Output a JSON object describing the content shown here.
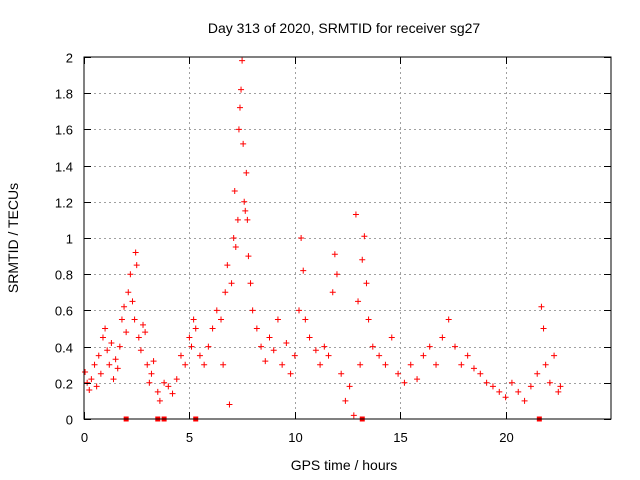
{
  "chart_data": {
    "type": "scatter",
    "title": "Day 313 of 2020, SRMTID for receiver sg27",
    "xlabel": "GPS time / hours",
    "ylabel": "SRMTID / TECUs",
    "xlim": [
      0,
      25
    ],
    "ylim": [
      0,
      2
    ],
    "grid": true,
    "x_ticks": [
      "0",
      "5",
      "10",
      "15",
      "20"
    ],
    "x_tick_values": [
      0,
      5,
      10,
      15,
      20
    ],
    "y_ticks": [
      "0",
      "0.2",
      "0.4",
      "0.6",
      "0.8",
      "1",
      "1.2",
      "1.4",
      "1.6",
      "1.8",
      "2"
    ],
    "y_tick_values": [
      0,
      0.2,
      0.4,
      0.6,
      0.8,
      1.0,
      1.2,
      1.4,
      1.6,
      1.8,
      2.0
    ],
    "marker": "+",
    "series": [
      {
        "name": "SRMTID",
        "color": "#ff0000",
        "points": [
          [
            0.05,
            0.26
          ],
          [
            0.15,
            0.2
          ],
          [
            0.25,
            0.16
          ],
          [
            0.35,
            0.22
          ],
          [
            0.5,
            0.3
          ],
          [
            0.6,
            0.18
          ],
          [
            0.7,
            0.35
          ],
          [
            0.8,
            0.25
          ],
          [
            0.9,
            0.45
          ],
          [
            1.0,
            0.5
          ],
          [
            1.1,
            0.38
          ],
          [
            1.2,
            0.3
          ],
          [
            1.3,
            0.42
          ],
          [
            1.4,
            0.22
          ],
          [
            1.5,
            0.33
          ],
          [
            1.6,
            0.28
          ],
          [
            1.7,
            0.4
          ],
          [
            1.8,
            0.55
          ],
          [
            1.9,
            0.62
          ],
          [
            2.0,
            0.48
          ],
          [
            2.1,
            0.7
          ],
          [
            2.2,
            0.8
          ],
          [
            2.3,
            0.65
          ],
          [
            2.4,
            0.55
          ],
          [
            2.45,
            0.92
          ],
          [
            2.5,
            0.85
          ],
          [
            2.6,
            0.45
          ],
          [
            2.7,
            0.38
          ],
          [
            2.8,
            0.52
          ],
          [
            2.9,
            0.48
          ],
          [
            3.0,
            0.3
          ],
          [
            3.1,
            0.2
          ],
          [
            3.2,
            0.25
          ],
          [
            3.3,
            0.32
          ],
          [
            3.5,
            0.15
          ],
          [
            3.6,
            0.1
          ],
          [
            3.8,
            0.2
          ],
          [
            4.0,
            0.18
          ],
          [
            4.2,
            0.14
          ],
          [
            4.4,
            0.22
          ],
          [
            4.6,
            0.35
          ],
          [
            4.8,
            0.3
          ],
          [
            5.0,
            0.45
          ],
          [
            5.1,
            0.4
          ],
          [
            5.2,
            0.55
          ],
          [
            5.3,
            0.5
          ],
          [
            5.5,
            0.35
          ],
          [
            5.7,
            0.3
          ],
          [
            5.9,
            0.4
          ],
          [
            6.1,
            0.5
          ],
          [
            6.3,
            0.6
          ],
          [
            6.5,
            0.55
          ],
          [
            6.6,
            0.3
          ],
          [
            6.7,
            0.7
          ],
          [
            6.8,
            0.85
          ],
          [
            6.9,
            0.08
          ],
          [
            7.0,
            0.75
          ],
          [
            7.1,
            1.0
          ],
          [
            7.15,
            1.26
          ],
          [
            7.2,
            0.95
          ],
          [
            7.3,
            1.1
          ],
          [
            7.35,
            1.6
          ],
          [
            7.4,
            1.72
          ],
          [
            7.45,
            1.82
          ],
          [
            7.5,
            1.98
          ],
          [
            7.55,
            1.52
          ],
          [
            7.6,
            1.2
          ],
          [
            7.65,
            1.15
          ],
          [
            7.7,
            1.36
          ],
          [
            7.75,
            1.1
          ],
          [
            7.8,
            0.9
          ],
          [
            7.9,
            0.75
          ],
          [
            8.0,
            0.6
          ],
          [
            8.2,
            0.5
          ],
          [
            8.4,
            0.4
          ],
          [
            8.6,
            0.32
          ],
          [
            8.8,
            0.45
          ],
          [
            9.0,
            0.38
          ],
          [
            9.2,
            0.55
          ],
          [
            9.4,
            0.3
          ],
          [
            9.6,
            0.42
          ],
          [
            9.8,
            0.25
          ],
          [
            10.0,
            0.35
          ],
          [
            10.2,
            0.6
          ],
          [
            10.3,
            1.0
          ],
          [
            10.4,
            0.82
          ],
          [
            10.5,
            0.55
          ],
          [
            10.7,
            0.45
          ],
          [
            11.0,
            0.38
          ],
          [
            11.2,
            0.3
          ],
          [
            11.4,
            0.4
          ],
          [
            11.6,
            0.35
          ],
          [
            11.8,
            0.7
          ],
          [
            11.9,
            0.91
          ],
          [
            12.0,
            0.8
          ],
          [
            12.2,
            0.25
          ],
          [
            12.4,
            0.1
          ],
          [
            12.6,
            0.18
          ],
          [
            12.8,
            0.02
          ],
          [
            12.9,
            1.13
          ],
          [
            13.0,
            0.65
          ],
          [
            13.1,
            0.3
          ],
          [
            13.2,
            0.88
          ],
          [
            13.3,
            1.01
          ],
          [
            13.4,
            0.75
          ],
          [
            13.5,
            0.55
          ],
          [
            13.7,
            0.4
          ],
          [
            14.0,
            0.35
          ],
          [
            14.3,
            0.3
          ],
          [
            14.6,
            0.45
          ],
          [
            14.9,
            0.25
          ],
          [
            15.2,
            0.2
          ],
          [
            15.5,
            0.3
          ],
          [
            15.8,
            0.22
          ],
          [
            16.1,
            0.35
          ],
          [
            16.4,
            0.4
          ],
          [
            16.7,
            0.3
          ],
          [
            17.0,
            0.45
          ],
          [
            17.3,
            0.55
          ],
          [
            17.6,
            0.4
          ],
          [
            17.9,
            0.3
          ],
          [
            18.2,
            0.35
          ],
          [
            18.5,
            0.28
          ],
          [
            18.8,
            0.25
          ],
          [
            19.1,
            0.2
          ],
          [
            19.4,
            0.18
          ],
          [
            19.7,
            0.15
          ],
          [
            20.0,
            0.12
          ],
          [
            20.3,
            0.2
          ],
          [
            20.6,
            0.15
          ],
          [
            20.9,
            0.1
          ],
          [
            21.2,
            0.18
          ],
          [
            21.5,
            0.25
          ],
          [
            21.7,
            0.62
          ],
          [
            21.8,
            0.5
          ],
          [
            21.9,
            0.3
          ],
          [
            22.1,
            0.2
          ],
          [
            22.3,
            0.35
          ],
          [
            22.5,
            0.15
          ],
          [
            22.6,
            0.18
          ]
        ]
      }
    ],
    "axis_markers": {
      "name": "data-gap-markers",
      "marker": "square",
      "x": [
        2.0,
        3.5,
        3.8,
        5.3,
        13.2,
        21.6
      ]
    }
  }
}
